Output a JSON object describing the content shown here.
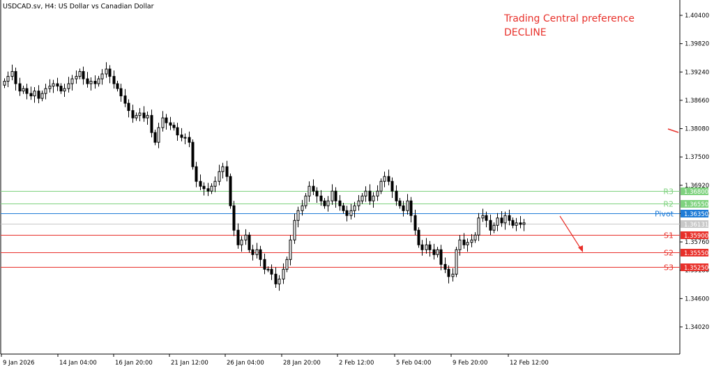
{
  "header": {
    "symbol_title": "USDCAD.sv, H4:  US Dollar vs Canadian Dollar"
  },
  "annotation": {
    "line1": "Trading Central preference",
    "line2": "DECLINE",
    "color": "#e8302a"
  },
  "colors": {
    "resistance": "#7fd27f",
    "pivot": "#1e7bd6",
    "support": "#e8302a",
    "current": "#c8c8c8"
  },
  "chart_data": {
    "type": "candlestick",
    "ylim": [
      1.338,
      1.406
    ],
    "y_ticks": [
      "1.40400",
      "1.39820",
      "1.39240",
      "1.38660",
      "1.38080",
      "1.37500",
      "1.36920",
      "1.36340",
      "1.35760",
      "1.35180",
      "1.34600",
      "1.34020"
    ],
    "x_ticks": [
      "9 Jan 2026",
      "14 Jan 04:00",
      "16 Jan 20:00",
      "21 Jan 12:00",
      "26 Jan 04:00",
      "28 Jan 20:00",
      "2 Feb 12:00",
      "5 Feb 04:00",
      "9 Feb 20:00",
      "12 Feb 12:00"
    ],
    "levels": [
      {
        "name": "R3",
        "value": 1.368,
        "label": "1.36800",
        "kind": "resistance"
      },
      {
        "name": "R2",
        "value": 1.3655,
        "label": "1.36550",
        "kind": "resistance"
      },
      {
        "name": "Pivot",
        "value": 1.3635,
        "label": "1.36350",
        "kind": "pivot"
      },
      {
        "name": "S1",
        "value": 1.359,
        "label": "1.35900",
        "kind": "support"
      },
      {
        "name": "S2",
        "value": 1.3555,
        "label": "1.35550",
        "kind": "support"
      },
      {
        "name": "S3",
        "value": 1.3525,
        "label": "1.35250",
        "kind": "support"
      }
    ],
    "current_price": {
      "value": 1.3613,
      "label": "1.36131"
    },
    "closes": [
      1.3905,
      1.3915,
      1.3925,
      1.39,
      1.3885,
      1.389,
      1.388,
      1.3875,
      1.3885,
      1.387,
      1.388,
      1.389,
      1.3895,
      1.39,
      1.3895,
      1.3885,
      1.389,
      1.39,
      1.391,
      1.3915,
      1.3925,
      1.391,
      1.39,
      1.3905,
      1.39,
      1.391,
      1.392,
      1.393,
      1.3915,
      1.39,
      1.389,
      1.3875,
      1.386,
      1.3845,
      1.383,
      1.3835,
      1.384,
      1.383,
      1.3835,
      1.38,
      1.378,
      1.381,
      1.383,
      1.382,
      1.3815,
      1.381,
      1.3795,
      1.379,
      1.379,
      1.378,
      1.373,
      1.37,
      1.369,
      1.3685,
      1.368,
      1.369,
      1.37,
      1.372,
      1.373,
      1.371,
      1.365,
      1.36,
      1.357,
      1.358,
      1.359,
      1.356,
      1.355,
      1.356,
      1.354,
      1.352,
      1.352,
      1.351,
      1.349,
      1.35,
      1.352,
      1.354,
      1.358,
      1.362,
      1.364,
      1.365,
      1.367,
      1.369,
      1.368,
      1.367,
      1.366,
      1.365,
      1.366,
      1.368,
      1.366,
      1.365,
      1.364,
      1.363,
      1.364,
      1.365,
      1.366,
      1.367,
      1.368,
      1.366,
      1.367,
      1.368,
      1.37,
      1.371,
      1.37,
      1.368,
      1.366,
      1.365,
      1.364,
      1.366,
      1.363,
      1.36,
      1.357,
      1.356,
      1.357,
      1.356,
      1.355,
      1.356,
      1.353,
      1.352,
      1.3505,
      1.351,
      1.356,
      1.358,
      1.357,
      1.3575,
      1.358,
      1.359,
      1.3625,
      1.363,
      1.362,
      1.36,
      1.361,
      1.3625,
      1.3615,
      1.363,
      1.362,
      1.361,
      1.3615,
      1.3612,
      1.3615
    ]
  }
}
